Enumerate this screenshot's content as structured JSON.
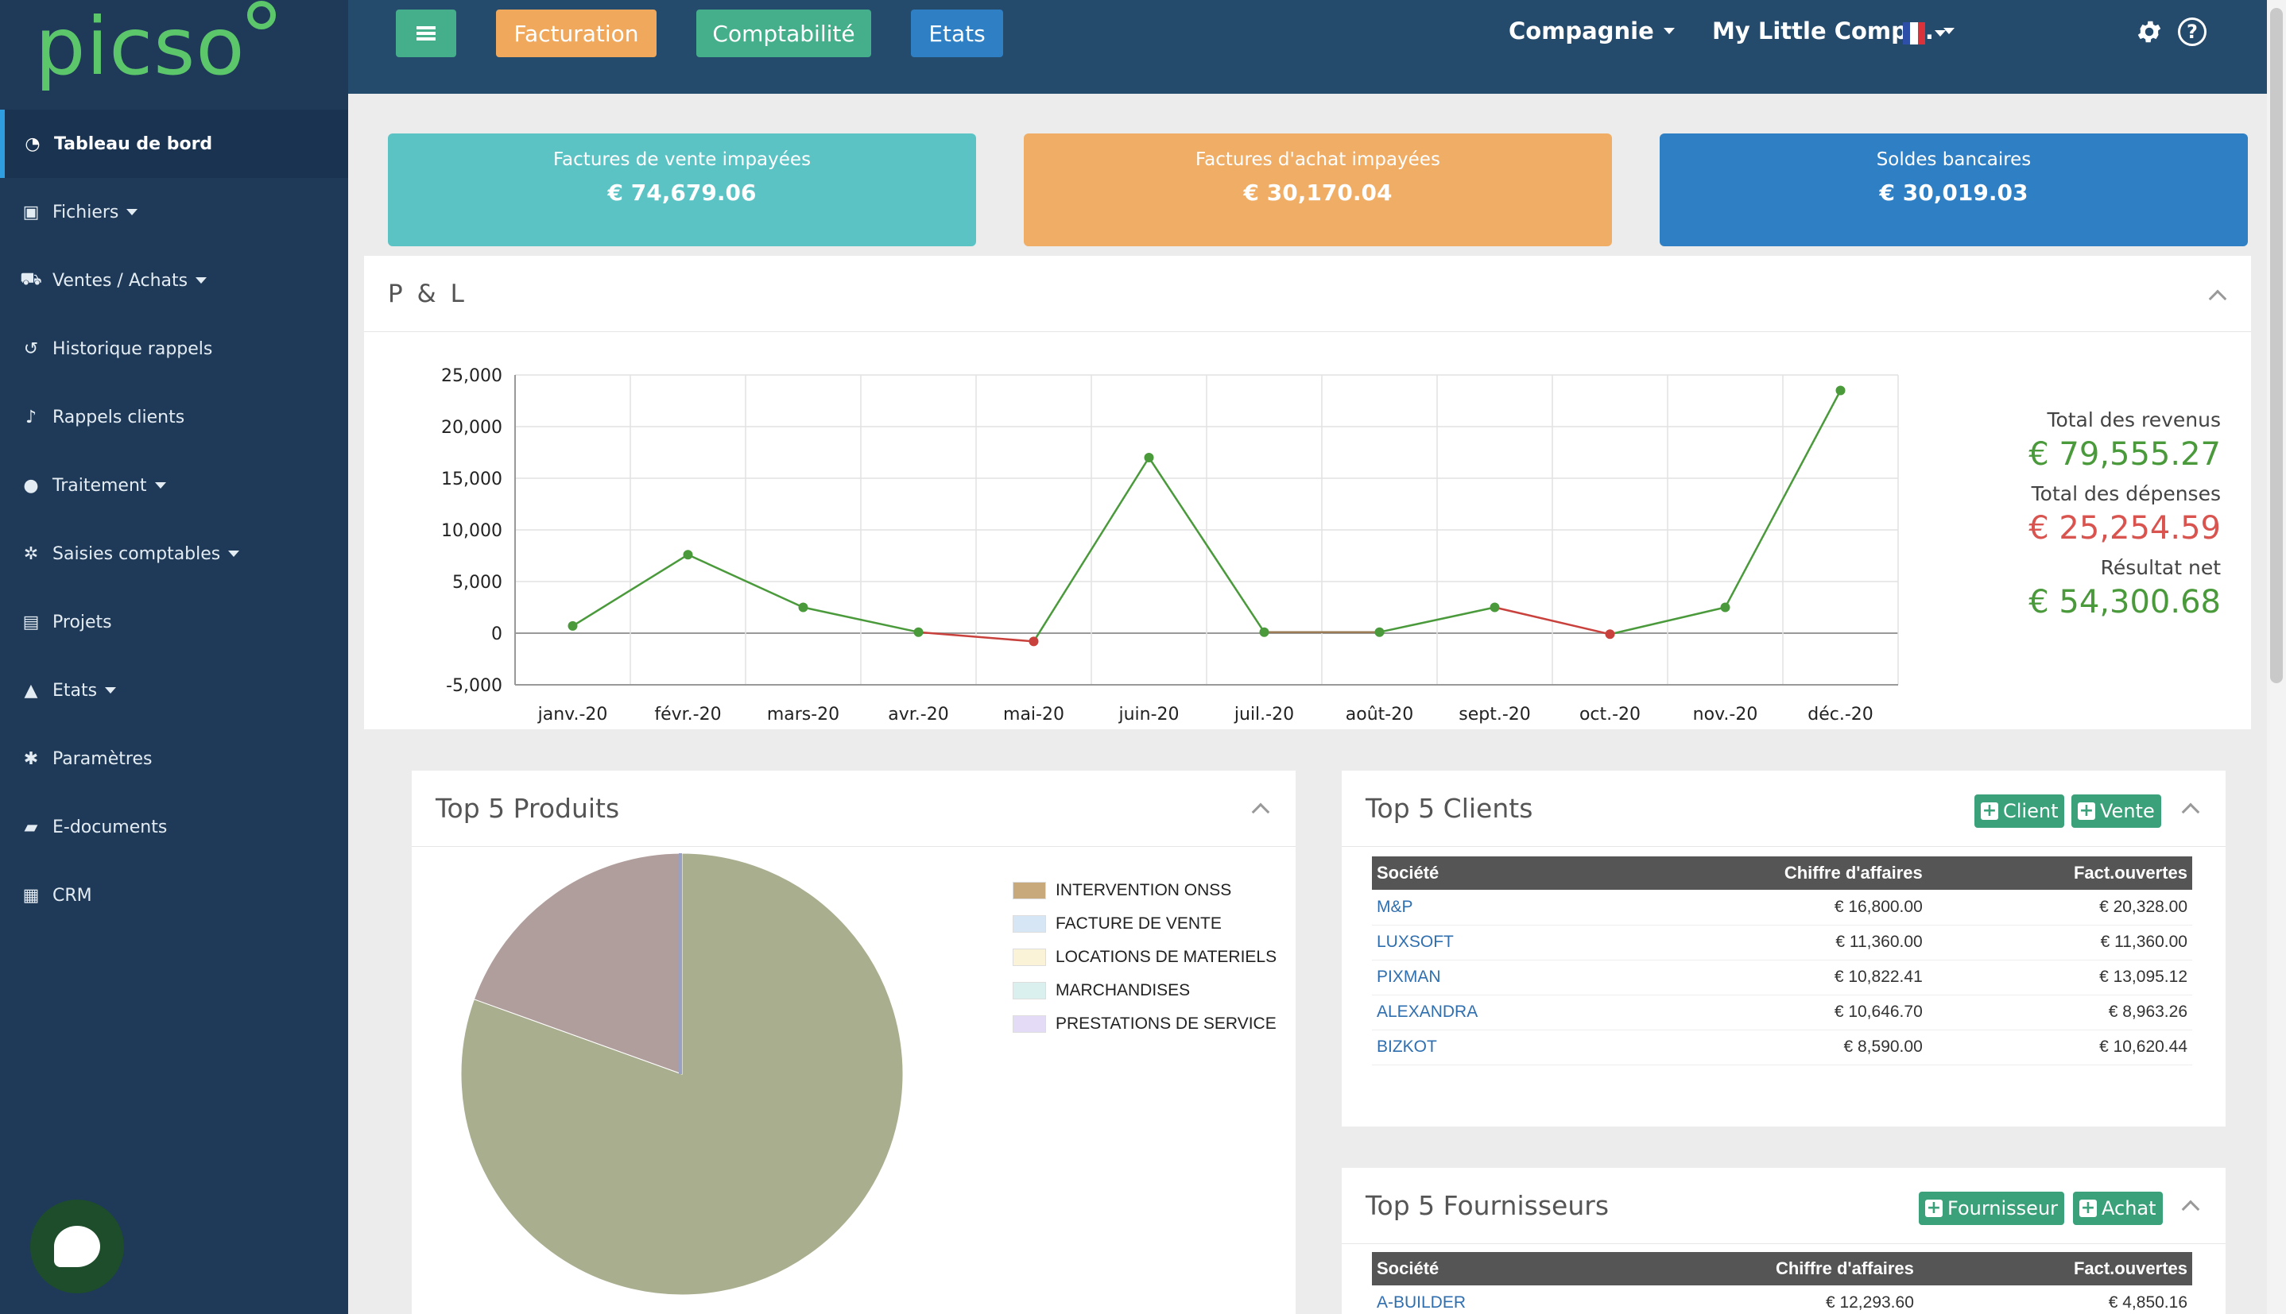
{
  "app": {
    "logo": "picso"
  },
  "sidebar": {
    "items": [
      {
        "label": "Tableau de bord",
        "icon": "dashboard-icon",
        "active": true,
        "caret": false
      },
      {
        "label": "Fichiers",
        "icon": "file-icon",
        "caret": true
      },
      {
        "label": "Ventes / Achats",
        "icon": "cart-icon",
        "caret": true
      },
      {
        "label": "Historique rappels",
        "icon": "history-icon",
        "caret": false
      },
      {
        "label": "Rappels clients",
        "icon": "bell-icon",
        "caret": false
      },
      {
        "label": "Traitement",
        "icon": "process-icon",
        "caret": true
      },
      {
        "label": "Saisies comptables",
        "icon": "cogs-icon",
        "caret": true
      },
      {
        "label": "Projets",
        "icon": "projects-icon",
        "caret": false
      },
      {
        "label": "Etats",
        "icon": "area-chart-icon",
        "caret": true
      },
      {
        "label": "Paramètres",
        "icon": "gear-icon",
        "caret": false
      },
      {
        "label": "E-documents",
        "icon": "folder-icon",
        "caret": false
      },
      {
        "label": "CRM",
        "icon": "card-icon",
        "caret": false
      }
    ]
  },
  "topbar": {
    "facturation": "Facturation",
    "comptabilite": "Comptabilité",
    "etats": "Etats",
    "compagnie": "Compagnie",
    "company": "My Little Comp...",
    "colors": {
      "facturation": "#f0a95c",
      "comptabilite": "#45ae8a",
      "etats": "#2f7fc4"
    }
  },
  "kpis": {
    "sales": {
      "label": "Factures de vente impayées",
      "value": "€ 74,679.06"
    },
    "purchases": {
      "label": "Factures d'achat impayées",
      "value": "€ 30,170.04"
    },
    "bank": {
      "label": "Soldes bancaires",
      "value": "€ 30,019.03"
    }
  },
  "pl": {
    "title": "P & L",
    "total_revenue_label": "Total des revenus",
    "total_revenue": "€ 79,555.27",
    "total_expenses_label": "Total des dépenses",
    "total_expenses": "€ 25,254.59",
    "net_label": "Résultat net",
    "net": "€ 54,300.68",
    "colors": {
      "revenue": "#4a9a3c",
      "expenses": "#d9534f"
    }
  },
  "chart_data": [
    {
      "type": "line",
      "x": [
        "janv.-20",
        "févr.-20",
        "mars-20",
        "avr.-20",
        "mai-20",
        "juin-20",
        "juil.-20",
        "août-20",
        "sept.-20",
        "oct.-20",
        "nov.-20",
        "déc.-20"
      ],
      "series": [
        {
          "values": [
            700,
            7600,
            2500,
            100,
            -800,
            17000,
            100,
            100,
            2500,
            -100,
            2500,
            23500
          ]
        }
      ],
      "yticks": [
        "25,000",
        "20,000",
        "15,000",
        "10,000",
        "5,000",
        "0",
        "-5,000"
      ],
      "ylim": [
        -5000,
        25000
      ],
      "grid": true,
      "colors": {
        "positive": "#4a9a3c",
        "negative": "#c9413c",
        "neutral": "#9a7b55"
      }
    },
    {
      "type": "pie",
      "categories": [
        "INTERVENTION ONSS",
        "FACTURE DE VENTE",
        "LOCATIONS DE MATERIELS",
        "MARCHANDISES",
        "PRESTATIONS DE SERVICE"
      ],
      "values": [
        0,
        0,
        0,
        80.5,
        19.5
      ],
      "legend": "right",
      "slice_colors": [
        "#a9ae8f",
        "#b09e9c",
        "#9aa0c2"
      ],
      "legend_colors": [
        "#c8a97c",
        "#d6e6f5",
        "#fbf3d8",
        "#d9f0ef",
        "#e4dcf7"
      ]
    }
  ],
  "top_products": {
    "title": "Top 5 Produits"
  },
  "top_clients": {
    "title": "Top 5 Clients",
    "btn_client": "Client",
    "btn_sale": "Vente",
    "headers": [
      "Société",
      "Chiffre d'affaires",
      "Fact.ouvertes"
    ],
    "rows": [
      [
        "M&P",
        "€ 16,800.00",
        "€ 20,328.00"
      ],
      [
        "LUXSOFT",
        "€ 11,360.00",
        "€ 11,360.00"
      ],
      [
        "PIXMAN",
        "€ 10,822.41",
        "€ 13,095.12"
      ],
      [
        "ALEXANDRA",
        "€ 10,646.70",
        "€ 8,963.26"
      ],
      [
        "BIZKOT",
        "€ 8,590.00",
        "€ 10,620.44"
      ]
    ]
  },
  "top_suppliers": {
    "title": "Top 5 Fournisseurs",
    "btn_supplier": "Fournisseur",
    "btn_purchase": "Achat",
    "headers": [
      "Société",
      "Chiffre d'affaires",
      "Fact.ouvertes"
    ],
    "rows": [
      [
        "A-BUILDER",
        "€ 12,293.60",
        "€ 4,850.16"
      ]
    ]
  }
}
